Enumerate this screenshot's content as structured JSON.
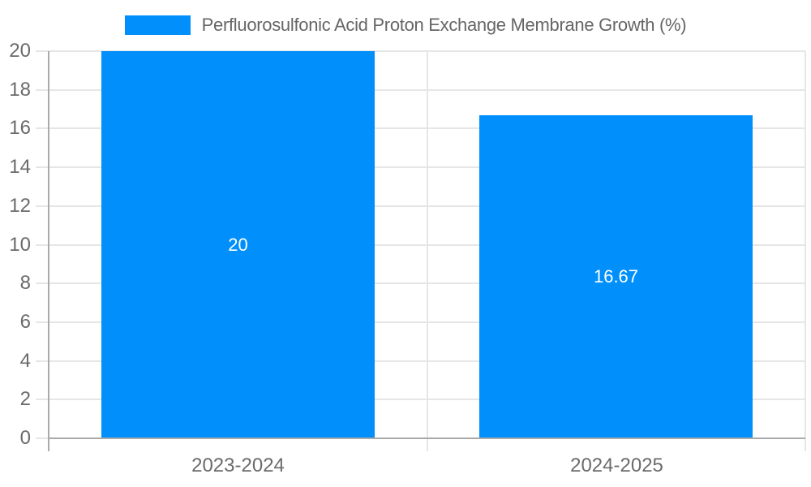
{
  "legend": {
    "label": "Perfluorosulfonic Acid Proton Exchange Membrane Growth (%)"
  },
  "chart_data": {
    "type": "bar",
    "title": "Perfluorosulfonic Acid Proton Exchange Membrane Growth (%)",
    "categories": [
      "2023-2024",
      "2024-2025"
    ],
    "series": [
      {
        "name": "Perfluorosulfonic Acid Proton Exchange Membrane Growth (%)",
        "values": [
          20,
          16.67
        ]
      }
    ],
    "value_labels": [
      "20",
      "16.67"
    ],
    "xlabel": "",
    "ylabel": "",
    "ylim": [
      0,
      20
    ],
    "yticks": [
      0,
      2,
      4,
      6,
      8,
      10,
      12,
      14,
      16,
      18,
      20
    ],
    "grid": true,
    "legend_position": "top",
    "colors": {
      "bar": "#008ffb",
      "grid": "#e6e6e6",
      "axis": "#aaaaaa",
      "tick_label": "#6b6b6b",
      "legend_text": "#666666",
      "value_label": "#ffffff",
      "background": "#ffffff"
    }
  }
}
